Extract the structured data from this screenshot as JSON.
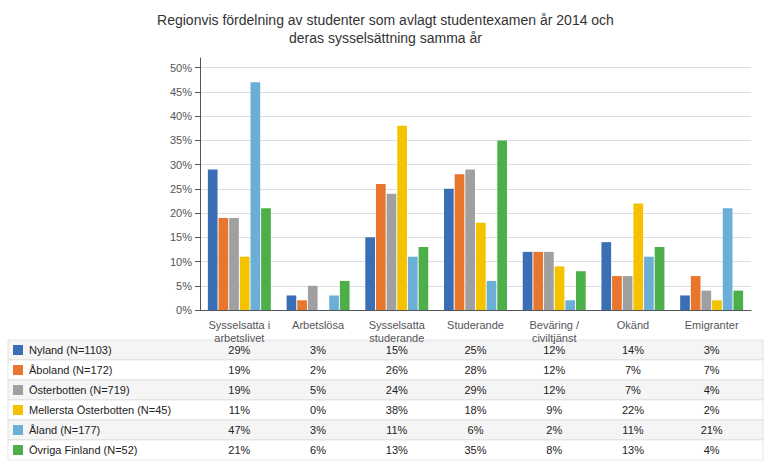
{
  "chart_data": {
    "type": "bar",
    "title": "Regionvis fördelning av studenter som avlagt studentexamen år 2014 och\nderas sysselsättning samma år",
    "categories": [
      "Sysselsatta i\narbetslivet",
      "Arbetslösa",
      "Sysselsatta\nstuderande",
      "Studerande",
      "Beväring /\nciviltjänst",
      "Okänd",
      "Emigranter"
    ],
    "series": [
      {
        "name": "Nyland (N=1103)",
        "color": "#3A6EB5",
        "values": [
          29,
          3,
          15,
          25,
          12,
          14,
          3
        ]
      },
      {
        "name": "Åboland (N=172)",
        "color": "#E8762C",
        "values": [
          19,
          2,
          26,
          28,
          12,
          7,
          7
        ]
      },
      {
        "name": "Österbotten (N=719)",
        "color": "#A0A0A0",
        "values": [
          19,
          5,
          24,
          29,
          12,
          7,
          4
        ]
      },
      {
        "name": "Mellersta Österbotten (N=45)",
        "color": "#F5C200",
        "values": [
          11,
          0,
          38,
          18,
          9,
          22,
          2
        ]
      },
      {
        "name": "Åland (N=177)",
        "color": "#6BAED6",
        "values": [
          47,
          3,
          11,
          6,
          2,
          11,
          21
        ]
      },
      {
        "name": "Övriga Finland (N=52)",
        "color": "#4DAF4A",
        "values": [
          21,
          6,
          13,
          35,
          8,
          13,
          4
        ]
      }
    ],
    "ylim": [
      0,
      52
    ],
    "yticks": [
      {
        "value": 0,
        "label": "0%"
      },
      {
        "value": 5,
        "label": "5%"
      },
      {
        "value": 10,
        "label": "10%"
      },
      {
        "value": 15,
        "label": "15%"
      },
      {
        "value": 20,
        "label": "20%"
      },
      {
        "value": 25,
        "label": "25%"
      },
      {
        "value": 30,
        "label": "30%"
      },
      {
        "value": 35,
        "label": "35%"
      },
      {
        "value": 40,
        "label": "40%"
      },
      {
        "value": 45,
        "label": "45%"
      },
      {
        "value": 50,
        "label": "50%"
      }
    ],
    "grid": true,
    "table_rows": [
      [
        "Nyland (N=1103)",
        "29%",
        "3%",
        "15%",
        "25%",
        "12%",
        "14%",
        "3%"
      ],
      [
        "Åboland (N=172)",
        "19%",
        "2%",
        "26%",
        "28%",
        "12%",
        "7%",
        "7%"
      ],
      [
        "Österbotten (N=719)",
        "19%",
        "5%",
        "24%",
        "29%",
        "12%",
        "7%",
        "4%"
      ],
      [
        "Mellersta Österbotten (N=45)",
        "11%",
        "0%",
        "38%",
        "18%",
        "9%",
        "22%",
        "2%"
      ],
      [
        "Åland (N=177)",
        "47%",
        "3%",
        "11%",
        "6%",
        "2%",
        "11%",
        "21%"
      ],
      [
        "Övriga Finland (N=52)",
        "21%",
        "6%",
        "13%",
        "35%",
        "8%",
        "13%",
        "4%"
      ]
    ]
  }
}
